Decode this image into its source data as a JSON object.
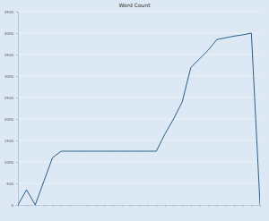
{
  "chart_data": {
    "type": "line",
    "title": "Word Count",
    "categories": [
      null,
      null,
      null,
      null,
      null,
      null,
      null,
      null,
      null,
      null,
      null,
      null,
      null,
      null,
      null,
      null,
      null,
      null,
      null,
      null,
      null,
      null,
      null,
      null,
      null,
      null,
      null,
      null,
      null
    ],
    "values": [
      0,
      350,
      0,
      550,
      1100,
      1250,
      1250,
      1250,
      1250,
      1250,
      1250,
      1250,
      1250,
      1250,
      1250,
      1250,
      1250,
      1650,
      2000,
      2400,
      3200,
      3400,
      3600,
      3850,
      3890,
      3930,
      3960,
      4000,
      0
    ],
    "color": "#2d5f86",
    "ylim": [
      0,
      4500
    ],
    "yticks": [
      0,
      500,
      1000,
      1500,
      2000,
      2500,
      3000,
      3500,
      4000,
      4500
    ],
    "grid": true,
    "tick_labels": "y"
  }
}
